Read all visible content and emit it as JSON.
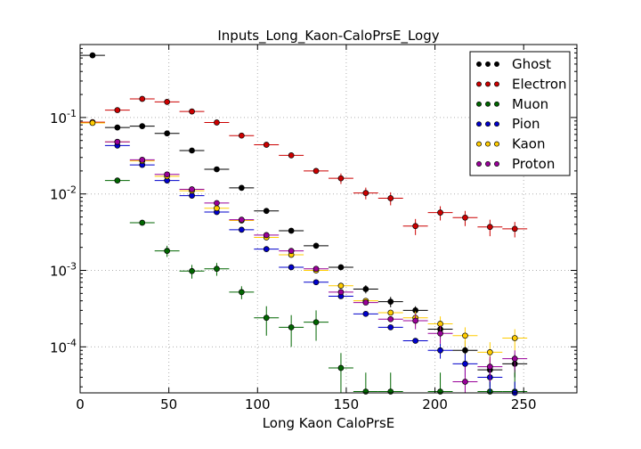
{
  "chart_data": {
    "type": "scatter",
    "title": "Inputs_Long_Kaon-CaloPrsE_Logy",
    "xlabel": "Long Kaon CaloPrsE",
    "ylabel": "",
    "xlim": [
      0,
      280
    ],
    "ylim": [
      2.5e-05,
      0.9
    ],
    "yscale": "log",
    "grid": true,
    "legend_position": "top-right",
    "x_ticks": [
      "0",
      "50",
      "100",
      "150",
      "200",
      "250"
    ],
    "y_ticks": [
      {
        "value": 0.1,
        "base": "10",
        "exp": "-1"
      },
      {
        "value": 0.01,
        "base": "10",
        "exp": "-2"
      },
      {
        "value": 0.001,
        "base": "10",
        "exp": "-3"
      },
      {
        "value": 0.0001,
        "base": "10",
        "exp": "-4"
      }
    ],
    "bin_half_width": 7,
    "series": [
      {
        "name": "Ghost",
        "color": "#000000",
        "points": [
          [
            7,
            0.65,
            0
          ],
          [
            21,
            0.074,
            0
          ],
          [
            35,
            0.077,
            0
          ],
          [
            49,
            0.062,
            0
          ],
          [
            63,
            0.037,
            0
          ],
          [
            77,
            0.021,
            0
          ],
          [
            91,
            0.012,
            0
          ],
          [
            105,
            0.006,
            0
          ],
          [
            119,
            0.0033,
            0
          ],
          [
            133,
            0.0021,
            0
          ],
          [
            147,
            0.0011,
            0
          ],
          [
            161,
            0.00057,
            7e-05
          ],
          [
            175,
            0.00039,
            6e-05
          ],
          [
            189,
            0.0003,
            4e-05
          ],
          [
            203,
            0.00017,
            4e-05
          ],
          [
            217,
            9e-05,
            3e-05
          ],
          [
            231,
            5e-05,
            2e-05
          ],
          [
            245,
            6e-05,
            2e-05
          ]
        ]
      },
      {
        "name": "Electron",
        "color": "#cc0000",
        "points": [
          [
            7,
            0.087,
            0
          ],
          [
            21,
            0.125,
            0
          ],
          [
            35,
            0.175,
            0
          ],
          [
            49,
            0.16,
            0
          ],
          [
            63,
            0.12,
            0
          ],
          [
            77,
            0.086,
            0
          ],
          [
            91,
            0.058,
            0
          ],
          [
            105,
            0.044,
            0
          ],
          [
            119,
            0.032,
            0
          ],
          [
            133,
            0.02,
            0
          ],
          [
            147,
            0.016,
            0.0025
          ],
          [
            161,
            0.0103,
            0.0018
          ],
          [
            175,
            0.0088,
            0.0017
          ],
          [
            189,
            0.0038,
            0.0009
          ],
          [
            203,
            0.0057,
            0.0012
          ],
          [
            217,
            0.0049,
            0.0011
          ],
          [
            231,
            0.0037,
            0.0009
          ],
          [
            245,
            0.0035,
            0.0008
          ]
        ]
      },
      {
        "name": "Muon",
        "color": "#006600",
        "points": [
          [
            21,
            0.015,
            0
          ],
          [
            35,
            0.0042,
            0
          ],
          [
            49,
            0.0018,
            0.0003
          ],
          [
            63,
            0.00098,
            0.0002
          ],
          [
            77,
            0.00105,
            0.0002
          ],
          [
            91,
            0.00052,
            0.0001
          ],
          [
            105,
            0.00024,
            0.0001
          ],
          [
            119,
            0.00018,
            8e-05
          ],
          [
            133,
            0.00021,
            9e-05
          ],
          [
            147,
            5.3e-05,
            3e-05
          ],
          [
            161,
            2.6e-05,
            2e-05
          ],
          [
            175,
            2.6e-05,
            2e-05
          ],
          [
            203,
            2.6e-05,
            2e-05
          ],
          [
            231,
            2.6e-05,
            2e-05
          ],
          [
            245,
            2.6e-05,
            2e-05
          ]
        ]
      },
      {
        "name": "Pion",
        "color": "#0000cc",
        "points": [
          [
            21,
            0.043,
            0
          ],
          [
            35,
            0.024,
            0
          ],
          [
            49,
            0.015,
            0
          ],
          [
            63,
            0.0095,
            0
          ],
          [
            77,
            0.0058,
            0
          ],
          [
            91,
            0.0034,
            0
          ],
          [
            105,
            0.0019,
            0
          ],
          [
            119,
            0.0011,
            0
          ],
          [
            133,
            0.0007,
            0
          ],
          [
            147,
            0.00046,
            0
          ],
          [
            161,
            0.00027,
            0
          ],
          [
            175,
            0.00018,
            0
          ],
          [
            189,
            0.00012,
            0
          ],
          [
            203,
            9e-05,
            2e-05
          ],
          [
            217,
            6e-05,
            2e-05
          ],
          [
            231,
            4e-05,
            2e-05
          ],
          [
            245,
            2.5e-05,
            1e-05
          ]
        ]
      },
      {
        "name": "Kaon",
        "color": "#ffcc00",
        "points": [
          [
            7,
            0.085,
            0
          ],
          [
            21,
            0.048,
            0
          ],
          [
            35,
            0.027,
            0
          ],
          [
            49,
            0.017,
            0
          ],
          [
            63,
            0.011,
            0
          ],
          [
            77,
            0.0065,
            0
          ],
          [
            91,
            0.0045,
            0
          ],
          [
            105,
            0.0027,
            0
          ],
          [
            119,
            0.0016,
            0
          ],
          [
            133,
            0.001,
            0
          ],
          [
            147,
            0.00063,
            0
          ],
          [
            161,
            0.0004,
            0
          ],
          [
            175,
            0.00028,
            0
          ],
          [
            189,
            0.00024,
            5e-05
          ],
          [
            203,
            0.0002,
            5e-05
          ],
          [
            217,
            0.00014,
            4e-05
          ],
          [
            231,
            8.5e-05,
            3e-05
          ],
          [
            245,
            0.00013,
            4e-05
          ]
        ]
      },
      {
        "name": "Proton",
        "color": "#990099",
        "points": [
          [
            21,
            0.048,
            0
          ],
          [
            35,
            0.028,
            0
          ],
          [
            49,
            0.018,
            0
          ],
          [
            63,
            0.0115,
            0
          ],
          [
            77,
            0.0076,
            0
          ],
          [
            91,
            0.0046,
            0
          ],
          [
            105,
            0.0029,
            0
          ],
          [
            119,
            0.0018,
            0
          ],
          [
            133,
            0.00105,
            0
          ],
          [
            147,
            0.00052,
            0
          ],
          [
            161,
            0.00038,
            0
          ],
          [
            175,
            0.00023,
            0
          ],
          [
            189,
            0.00022,
            5e-05
          ],
          [
            203,
            0.00015,
            4e-05
          ],
          [
            217,
            3.5e-05,
            2e-05
          ],
          [
            231,
            5.5e-05,
            2e-05
          ],
          [
            245,
            7e-05,
            2e-05
          ]
        ]
      }
    ]
  }
}
